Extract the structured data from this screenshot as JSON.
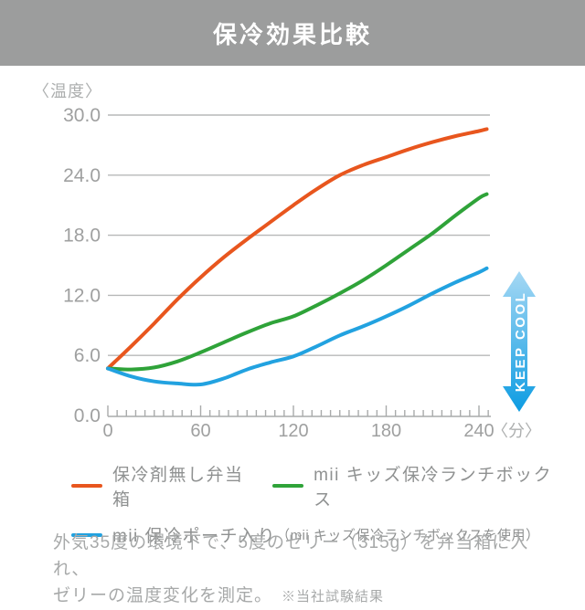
{
  "header": {
    "title": "保冷効果比較"
  },
  "chart_data": {
    "type": "line",
    "title": "保冷効果比較",
    "ylabel": "〈温度〉",
    "xlabel_unit": "〈分〉",
    "xlim": [
      0,
      246
    ],
    "ylim": [
      0,
      30
    ],
    "grid": true,
    "minor_tick_step_min": 6,
    "x": [
      0,
      15,
      30,
      45,
      60,
      75,
      90,
      105,
      120,
      135,
      150,
      165,
      180,
      195,
      210,
      225,
      240,
      245
    ],
    "series": [
      {
        "name": "保冷剤無し弁当箱",
        "color": "#e8561e",
        "values": [
          4.7,
          6.9,
          9.2,
          11.6,
          13.8,
          15.8,
          17.6,
          19.3,
          21.0,
          22.6,
          24.0,
          25.0,
          25.8,
          26.6,
          27.3,
          27.9,
          28.4,
          28.6
        ]
      },
      {
        "name": "mii キッズ保冷ランチボックス",
        "color": "#2fa339",
        "values": [
          4.7,
          4.6,
          4.8,
          5.4,
          6.3,
          7.3,
          8.3,
          9.2,
          9.9,
          11.0,
          12.2,
          13.5,
          15.0,
          16.6,
          18.2,
          20.0,
          21.7,
          22.1
        ]
      },
      {
        "name": "mii 保冷ポーチ入り（mii キッズ保冷ランチボックスを使用）",
        "color": "#22a2e0",
        "values": [
          4.7,
          3.9,
          3.4,
          3.2,
          3.1,
          3.7,
          4.6,
          5.3,
          5.9,
          6.9,
          8.0,
          8.9,
          9.9,
          11.0,
          12.2,
          13.3,
          14.3,
          14.7
        ]
      }
    ],
    "yticks": [
      {
        "value": 30,
        "label": "30.0"
      },
      {
        "value": 24,
        "label": "24.0"
      },
      {
        "value": 18,
        "label": "18.0"
      },
      {
        "value": 12,
        "label": "12.0"
      },
      {
        "value": 6,
        "label": "6.0"
      },
      {
        "value": 0,
        "label": "0.0"
      }
    ],
    "xticks": [
      {
        "value": 0,
        "label": "0"
      },
      {
        "value": 60,
        "label": "60"
      },
      {
        "value": 120,
        "label": "120"
      },
      {
        "value": 180,
        "label": "180"
      },
      {
        "value": 240,
        "label": "240"
      }
    ],
    "legend_position": "bottom"
  },
  "keep_cool": {
    "label": "KEEP COOL",
    "gradient_top": "#a5d8f4",
    "gradient_bottom": "#0d9ce2"
  },
  "legend": [
    {
      "label": "保冷剤無し弁当箱",
      "color": "#e8561e"
    },
    {
      "label": "mii キッズ保冷ランチボックス",
      "color": "#2fa339"
    },
    {
      "label": "mii 保冷ポーチ入り",
      "sub_label": "（mii キッズ保冷ランチボックスを使用）",
      "color": "#22a2e0"
    }
  ],
  "footnote": {
    "line1": "外気35度の環境下で、5度のゼリー（315g）を弁当箱に入れ、",
    "line2": "ゼリーの温度変化を測定。",
    "note": "※当社試験結果"
  },
  "colors": {
    "banner_bg": "#9c9d9d",
    "banner_text": "#ffffff",
    "gridline": "#b7b8b8",
    "axis": "#a9abab",
    "tick_label": "#9fa0a0",
    "unit_label": "#adafaf",
    "legend_text": "#8f9191",
    "footnote_text": "#a7a9a9"
  }
}
